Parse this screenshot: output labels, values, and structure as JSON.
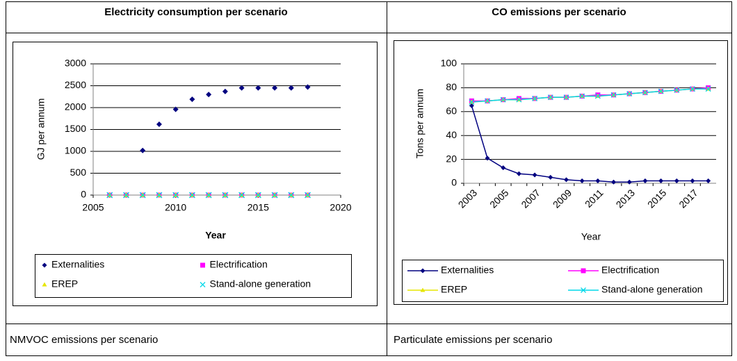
{
  "table": {
    "footer_row": [
      "NMVOC emissions per scenario",
      "Particulate emissions per scenario"
    ]
  },
  "chart_data": [
    {
      "type": "scatter",
      "title": "Electricity consumption per scenario",
      "x": [
        2006,
        2007,
        2008,
        2009,
        2010,
        2011,
        2012,
        2013,
        2014,
        2015,
        2016,
        2017,
        2018
      ],
      "series": [
        {
          "name": "Externalities",
          "color": "#000080",
          "marker": "diamond",
          "values": [
            0,
            0,
            1020,
            1620,
            1960,
            2190,
            2300,
            2370,
            2450,
            2450,
            2450,
            2450,
            2470
          ]
        },
        {
          "name": "Electrification",
          "color": "#ff00ff",
          "marker": "square",
          "values": [
            0,
            0,
            0,
            0,
            0,
            0,
            0,
            0,
            0,
            0,
            0,
            0,
            0
          ]
        },
        {
          "name": "EREP",
          "color": "#e6e600",
          "marker": "triangle",
          "values": [
            0,
            0,
            0,
            0,
            0,
            0,
            0,
            0,
            0,
            0,
            0,
            0,
            0
          ]
        },
        {
          "name": "Stand-alone generation",
          "color": "#00d8e8",
          "marker": "cross",
          "values": [
            0,
            0,
            0,
            0,
            0,
            0,
            0,
            0,
            0,
            0,
            0,
            0,
            0
          ]
        }
      ],
      "xlim": [
        2005,
        2020
      ],
      "xticks": [
        2005,
        2010,
        2015,
        2020
      ],
      "ylim": [
        0,
        3000
      ],
      "yticks": [
        0,
        500,
        1000,
        1500,
        2000,
        2500,
        3000
      ],
      "x_label": "Year",
      "y_label": "GJ per annum",
      "grid": true,
      "legend": "bottom"
    },
    {
      "type": "line",
      "title": "CO emissions per scenario",
      "categories": [
        "2003",
        null,
        "2005",
        null,
        "2007",
        null,
        "2009",
        null,
        "2011",
        null,
        "2013",
        null,
        "2015",
        null,
        "2017",
        null
      ],
      "series": [
        {
          "name": "Externalities",
          "color": "#000080",
          "marker": "diamond",
          "values": [
            65,
            21,
            13,
            8,
            7,
            5,
            3,
            2,
            2,
            1,
            1,
            2,
            2,
            2,
            2,
            2
          ]
        },
        {
          "name": "Electrification",
          "color": "#ff00ff",
          "marker": "square",
          "values": [
            69,
            69,
            70,
            71,
            71,
            72,
            72,
            73,
            74,
            74,
            75,
            76,
            77,
            78,
            79,
            80
          ]
        },
        {
          "name": "EREP",
          "color": "#e6e600",
          "marker": "triangle",
          "values": [
            68,
            69,
            70,
            70,
            71,
            72,
            72,
            73,
            73,
            74,
            75,
            76,
            77,
            78,
            79,
            79
          ]
        },
        {
          "name": "Stand-alone generation",
          "color": "#00d8e8",
          "marker": "cross",
          "values": [
            68,
            69,
            70,
            70,
            71,
            72,
            72,
            73,
            73,
            74,
            75,
            76,
            77,
            78,
            79,
            79
          ]
        }
      ],
      "ylim": [
        0,
        100
      ],
      "yticks": [
        0,
        20,
        40,
        60,
        80,
        100
      ],
      "x_label": "Year",
      "y_label": "Tons per annum",
      "grid": true,
      "legend": "bottom"
    }
  ]
}
